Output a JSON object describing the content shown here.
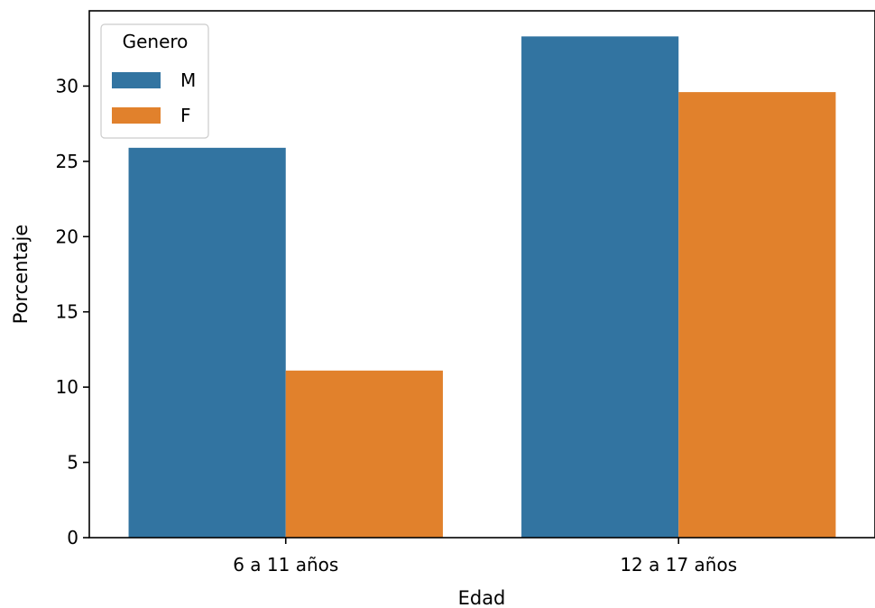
{
  "chart_data": {
    "type": "bar",
    "title": "",
    "xlabel": "Edad",
    "ylabel": "Porcentaje",
    "categories": [
      "6 a 11 años",
      "12 a 17 años"
    ],
    "series": [
      {
        "name": "M",
        "values": [
          25.9,
          33.3
        ],
        "color": "#3274a1"
      },
      {
        "name": "F",
        "values": [
          11.1,
          29.6
        ],
        "color": "#e1812c"
      }
    ],
    "ylim": [
      0,
      35
    ],
    "yticks": [
      0,
      5,
      10,
      15,
      20,
      25,
      30
    ],
    "grid": false,
    "legend": {
      "title": "Genero",
      "position": "top-left"
    }
  }
}
